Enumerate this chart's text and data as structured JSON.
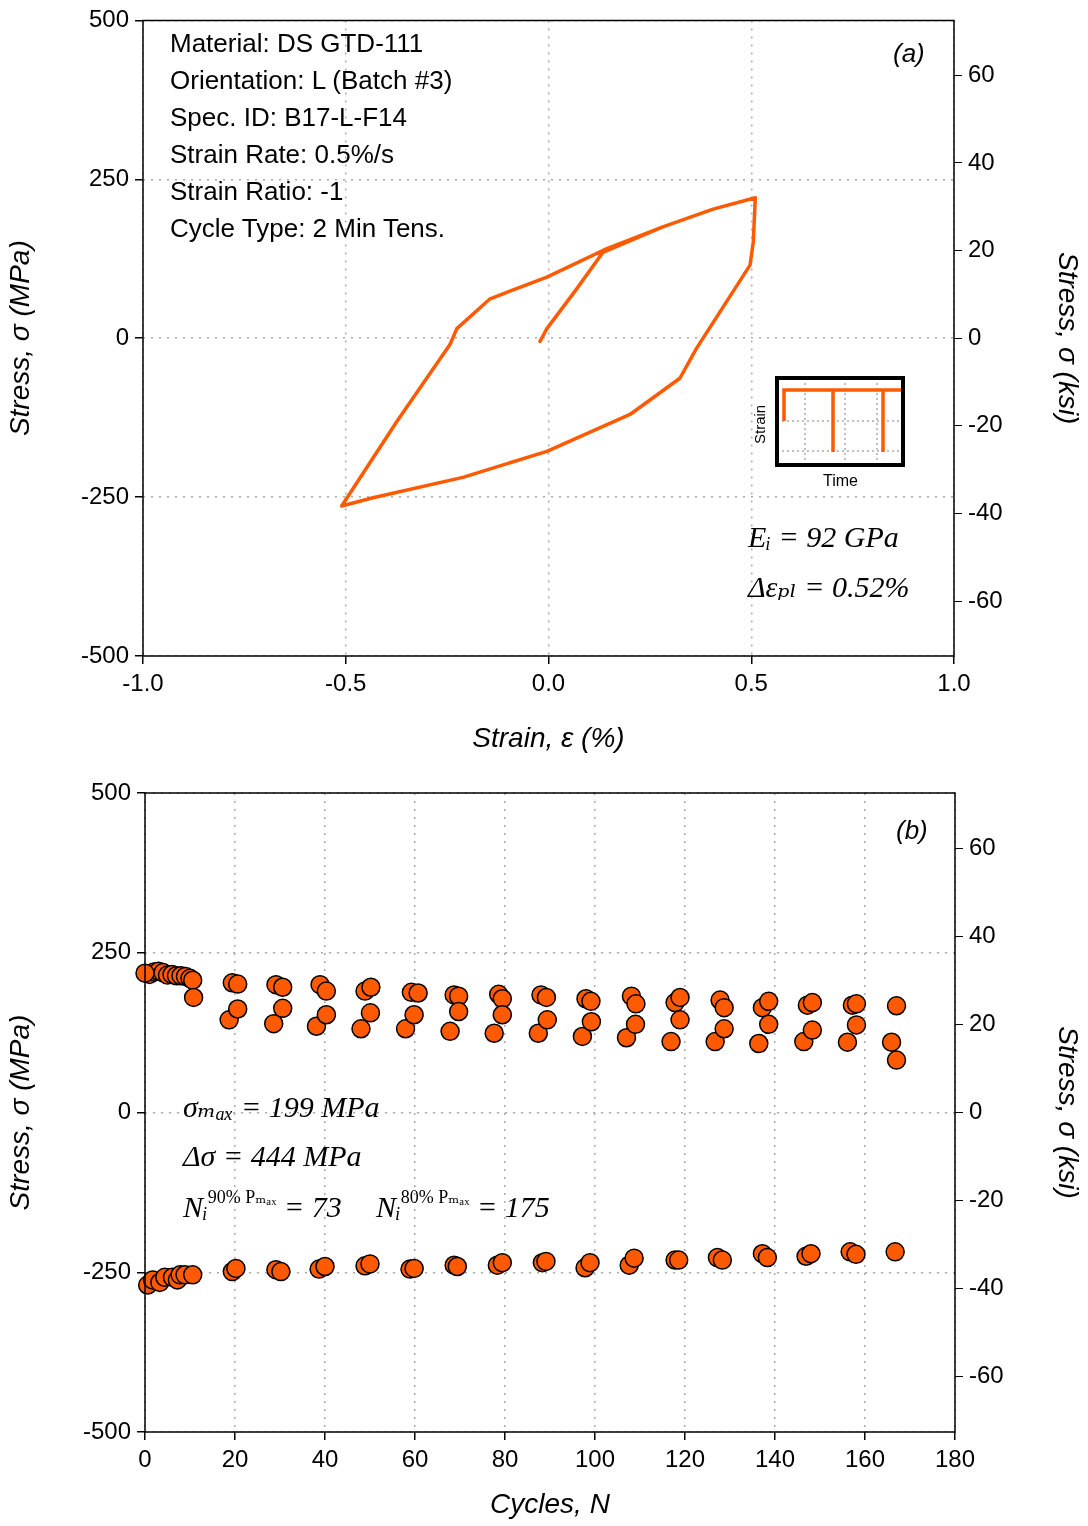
{
  "chart_data": [
    {
      "type": "line",
      "xlabel": "Strain, ε (%)",
      "ylabel": "Stress, σ (MPa)",
      "y2label": "Stress, σ (ksi)",
      "xlim": [
        -1,
        1
      ],
      "xticks": [
        {
          "value": -1,
          "label": "-1.0"
        },
        {
          "value": -0.5,
          "label": "-0.5"
        },
        {
          "value": 0,
          "label": "0.0"
        },
        {
          "value": 0.5,
          "label": "0.5"
        },
        {
          "value": 1,
          "label": "1.0"
        }
      ],
      "ylim": [
        -500,
        500
      ],
      "yticks": [
        -500,
        -250,
        0,
        250,
        500
      ],
      "y2lim": [
        -72.52,
        72.52
      ],
      "y2ticks": [
        -60,
        -40,
        -20,
        0,
        20,
        40,
        60
      ],
      "grid": true,
      "marker": "none",
      "line_style": "solid",
      "annotations": [
        "Material: DS GTD-111",
        "Orientation: L (Batch #3)",
        "Spec. ID: B17-L-F14",
        "Strain Rate: 0.5%/s",
        "Strain Ratio: -1",
        "Cycle Type: 2 Min Tens.",
        "(a)",
        "Eᵢ = 92 GPa",
        "Δεₚₗ = 0.52%",
        "Strain",
        "Time"
      ],
      "series": [
        {
          "color": "#ff5a00",
          "x": [
            -0.021,
            -0.004,
            0.07,
            0.134,
            0.282,
            0.406,
            0.51,
            0.505,
            0.497,
            0.365,
            0.324,
            0.201,
            -0.004,
            -0.211,
            -0.433,
            -0.51,
            -0.374,
            -0.243,
            -0.226,
            -0.144,
            -0.004,
            0.144,
            0.282,
            0.406,
            0.51
          ],
          "values": [
            -5,
            15,
            78,
            135,
            175,
            203,
            221,
            151,
            115,
            -16,
            -63,
            -120,
            -178,
            -219,
            -251,
            -264,
            -131,
            -10,
            15,
            62,
            96,
            141,
            175,
            203,
            221
          ]
        }
      ]
    },
    {
      "type": "scatter",
      "xlabel": "Cycles, N",
      "ylabel": "Stress, σ (MPa)",
      "y2label": "Stress, σ (ksi)",
      "xlim": [
        0,
        180
      ],
      "xticks": [
        0,
        20,
        40,
        60,
        80,
        100,
        120,
        140,
        160,
        180
      ],
      "ylim": [
        -500,
        500
      ],
      "yticks": [
        -500,
        -250,
        0,
        250,
        500
      ],
      "y2lim": [
        -72.52,
        72.52
      ],
      "y2ticks": [
        -60,
        -40,
        -20,
        0,
        20,
        40,
        60
      ],
      "grid": true,
      "marker": "circle",
      "annotations": [
        "(b)",
        "σₘₐₓ = 199 MPa",
        "Δσ = 444 MPa",
        "Nᵢ$^{90% Pₘₐₓ}$ = 73",
        "Nᵢ$^{80% Pₘₐₓ}$ = 175"
      ],
      "series": [
        {
          "color": "#ff5a00",
          "x": [
            1,
            2,
            3,
            4,
            5,
            6,
            7,
            8,
            9,
            10,
            10.6,
            10.8,
            19.4,
            20.6,
            18.7,
            20.6,
            29.1,
            30.6,
            28.6,
            30.6,
            38.9,
            40.3,
            38.1,
            40.3,
            48.9,
            50.2,
            48,
            50.1,
            59.2,
            60.7,
            57.9,
            59.8,
            68.7,
            69.7,
            67.8,
            69.7,
            78.6,
            79.4,
            77.6,
            79.4,
            88,
            89.2,
            87.4,
            89.4,
            98,
            99.1,
            97.2,
            99.2,
            108.1,
            109.1,
            107,
            109,
            117.8,
            118.9,
            116.9,
            118.9,
            127.8,
            128.7,
            126.7,
            128.7,
            137.2,
            138.6,
            136.4,
            138.6,
            147.2,
            148.3,
            146.4,
            148.3,
            157.2,
            158.1,
            156.1,
            158.1,
            167,
            165.9,
            167,
            0.6,
            1.7,
            3.3,
            4.4,
            6.1,
            7.2,
            7.8,
            8.9,
            10.6,
            19.4,
            20.2,
            29.1,
            30.2,
            38.7,
            40,
            48.9,
            50,
            58.9,
            59.8,
            68.7,
            69.4,
            78.3,
            79.4,
            88.3,
            89.1,
            97.8,
            98.9,
            107.6,
            108.7,
            117.8,
            118.6,
            127.2,
            128.3,
            137.2,
            138.3,
            146.9,
            148,
            156.7,
            158,
            166.7,
            0
          ],
          "values": [
            216,
            220,
            221,
            219,
            215,
            216,
            214,
            214,
            213,
            210,
            207,
            180,
            203,
            201,
            145,
            162,
            200,
            196,
            139,
            163,
            200,
            190,
            135,
            153,
            190,
            196,
            131,
            156,
            188,
            187,
            131,
            153,
            184,
            182,
            127,
            158,
            185,
            178,
            124,
            153,
            184,
            180,
            124,
            145,
            178,
            174,
            119,
            142,
            182,
            170,
            117,
            138,
            172,
            180,
            111,
            145,
            176,
            164,
            111,
            131,
            164,
            174,
            108,
            138,
            168,
            172,
            111,
            129,
            168,
            170,
            110,
            137,
            167,
            110,
            82,
            -270,
            -262,
            -266,
            -258,
            -258,
            -262,
            -254,
            -254,
            -254,
            -249,
            -244,
            -246,
            -249,
            -245,
            -241,
            -240,
            -237,
            -245,
            -244,
            -239,
            -241,
            -239,
            -235,
            -235,
            -233,
            -243,
            -235,
            -239,
            -228,
            -231,
            -231,
            -227,
            -231,
            -221,
            -227,
            -225,
            -221,
            -218,
            -222,
            -218,
            218
          ]
        }
      ]
    }
  ]
}
